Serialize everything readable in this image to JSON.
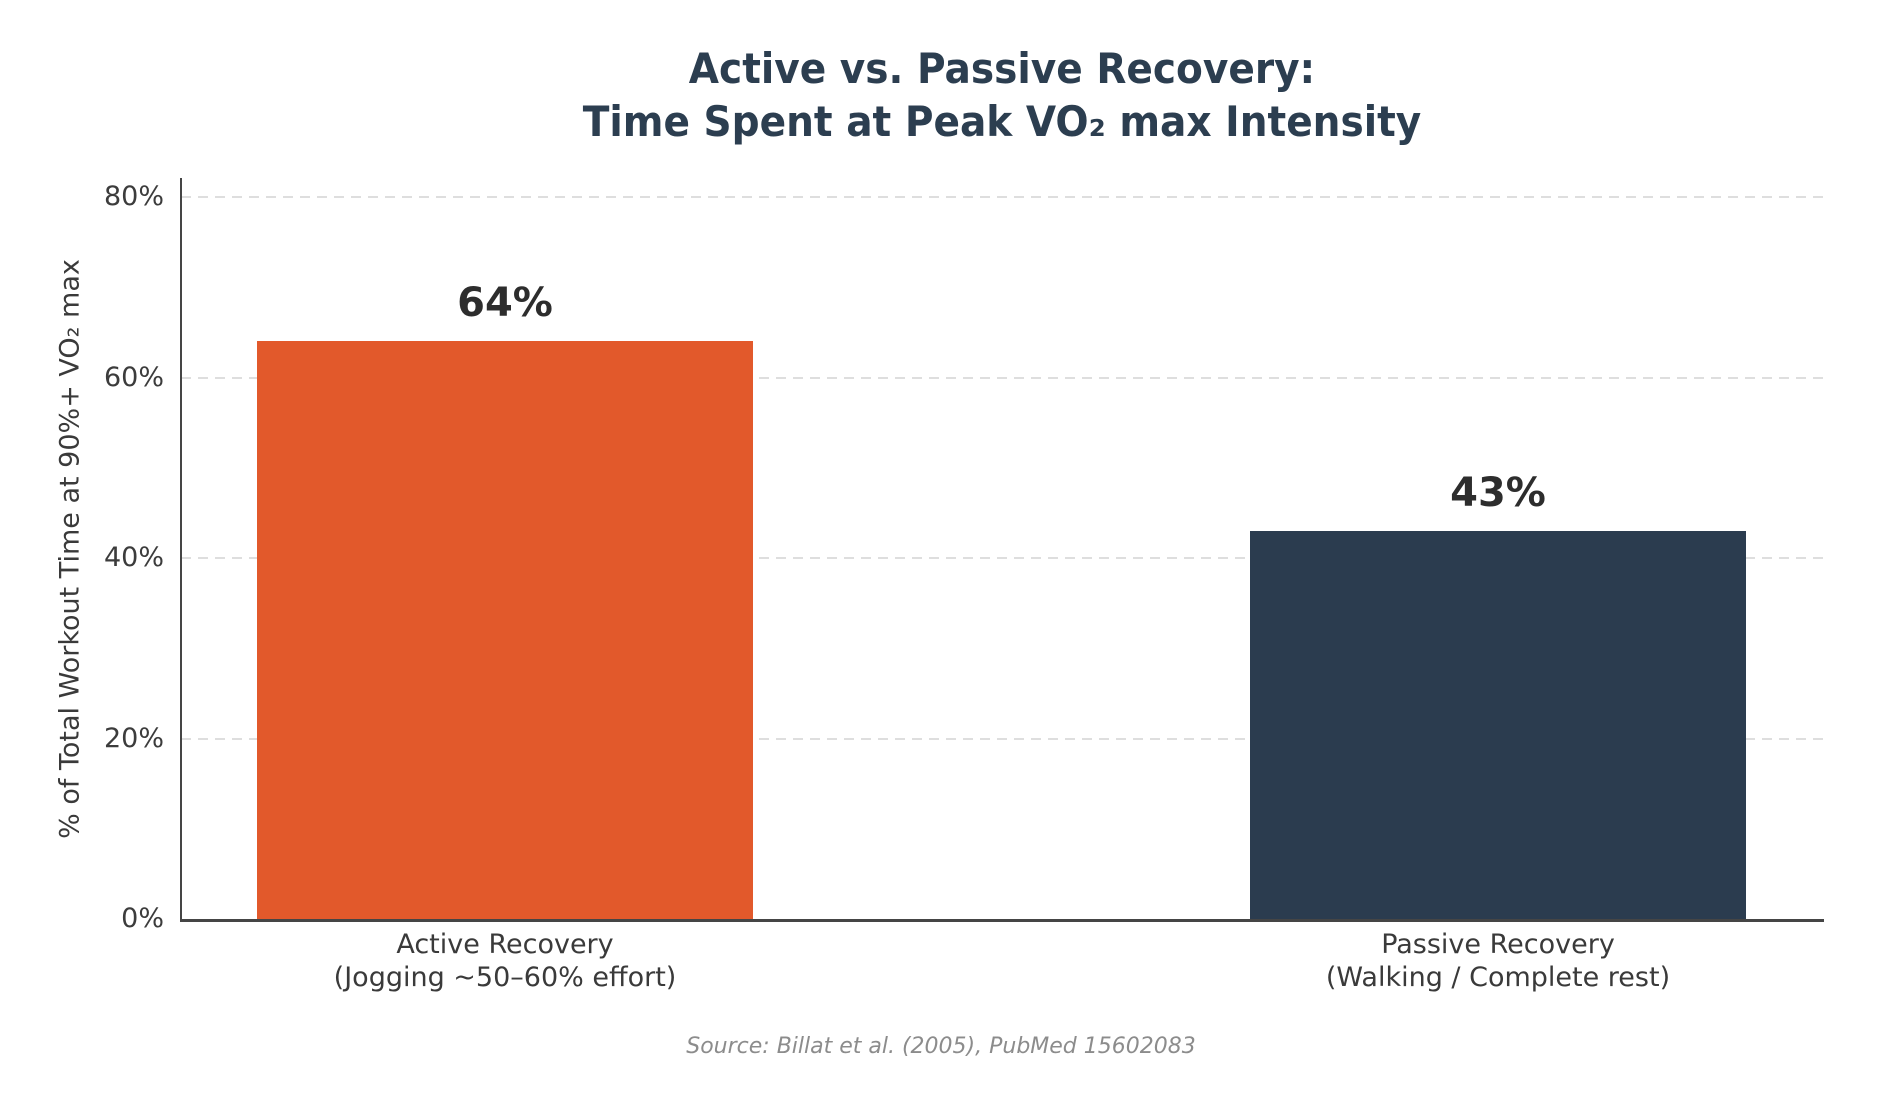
{
  "chart_data": {
    "type": "bar",
    "title": "Active vs. Passive Recovery: Time Spent at Peak VO₂ max Intensity",
    "title_lines": [
      "Active vs. Passive Recovery:",
      "Time Spent at Peak VO₂ max Intensity"
    ],
    "ylabel": "% of Total Workout Time at 90%+ VO₂ max",
    "xlabel": "",
    "categories": [
      "Active Recovery (Jogging ~50–60% effort)",
      "Passive Recovery (Walking / Complete rest)"
    ],
    "bars": [
      {
        "category_line1": "Active Recovery",
        "category_line2": "(Jogging ~50–60% effort)",
        "value": 64,
        "value_label": "64%",
        "color": "#e2592b"
      },
      {
        "category_line1": "Passive Recovery",
        "category_line2": "(Walking / Complete rest)",
        "value": 43,
        "value_label": "43%",
        "color": "#2b3c4f"
      }
    ],
    "yticks": [
      0,
      20,
      40,
      60,
      80
    ],
    "ytick_labels": [
      "0%",
      "20%",
      "40%",
      "60%",
      "80%"
    ],
    "ylim": [
      0,
      82
    ],
    "grid": {
      "axis": "y",
      "style": "dashed",
      "color": "#dedede"
    },
    "legend": "none",
    "source_note": "Source: Billat et al. (2005), PubMed 15602083"
  },
  "colors": {
    "background": "#ffffff",
    "title": "#2c3e50",
    "active_bar": "#e2592b",
    "passive_bar": "#2b3c4f",
    "value_label": "#2d2d2d",
    "tick_label": "#3c3c3c",
    "axis_line": "#454545",
    "gridline": "#dedede",
    "source_text": "#8c8c8c"
  }
}
